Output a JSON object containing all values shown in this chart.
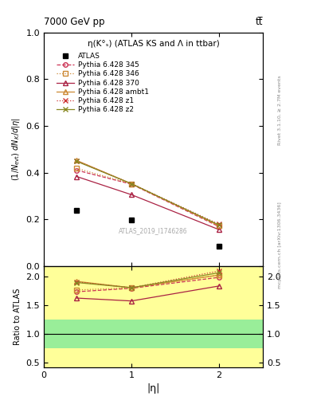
{
  "title_top": "7000 GeV pp",
  "title_right": "tt̅",
  "plot_title": "η(K°ₛ) (ATLAS KS and Λ in ttbar)",
  "watermark": "ATLAS_2019_I1746286",
  "xlabel": "|η|",
  "ylabel": "(1/N_{evt}) dN_{K}/d|η|",
  "ylabel_ratio": "Ratio to ATLAS",
  "rivet_label": "Rivet 3.1.10, ≥ 2.7M events",
  "mcplots_label": "mcplots.cern.ch [arXiv:1306.3436]",
  "atlas_data": {
    "x": [
      0.375,
      1.0,
      2.0
    ],
    "y": [
      0.237,
      0.196,
      0.085
    ],
    "label": "ATLAS"
  },
  "models": [
    {
      "label": "Pythia 6.428 345",
      "x": [
        0.375,
        1.0,
        2.0
      ],
      "y": [
        0.41,
        0.35,
        0.168
      ],
      "color": "#cc3355",
      "linestyle": "--",
      "marker": "o",
      "marker_face": "none"
    },
    {
      "label": "Pythia 6.428 346",
      "x": [
        0.375,
        1.0,
        2.0
      ],
      "y": [
        0.418,
        0.352,
        0.172
      ],
      "color": "#cc8833",
      "linestyle": ":",
      "marker": "s",
      "marker_face": "none"
    },
    {
      "label": "Pythia 6.428 370",
      "x": [
        0.375,
        1.0,
        2.0
      ],
      "y": [
        0.383,
        0.305,
        0.155
      ],
      "color": "#aa2244",
      "linestyle": "-",
      "marker": "^",
      "marker_face": "none"
    },
    {
      "label": "Pythia 6.428 ambt1",
      "x": [
        0.375,
        1.0,
        2.0
      ],
      "y": [
        0.452,
        0.352,
        0.172
      ],
      "color": "#cc8833",
      "linestyle": "-",
      "marker": "^",
      "marker_face": "none"
    },
    {
      "label": "Pythia 6.428 z1",
      "x": [
        0.375,
        1.0,
        2.0
      ],
      "y": [
        0.45,
        0.352,
        0.178
      ],
      "color": "#cc3333",
      "linestyle": ":",
      "marker": "x",
      "marker_face": "full"
    },
    {
      "label": "Pythia 6.428 z2",
      "x": [
        0.375,
        1.0,
        2.0
      ],
      "y": [
        0.448,
        0.352,
        0.175
      ],
      "color": "#888822",
      "linestyle": "-",
      "marker": "x",
      "marker_face": "full"
    }
  ],
  "ratio_models": [
    {
      "label": "Pythia 6.428 345",
      "x": [
        0.375,
        1.0,
        2.0
      ],
      "y": [
        1.73,
        1.79,
        1.98
      ],
      "color": "#cc3355",
      "linestyle": "--",
      "marker": "o",
      "marker_face": "none"
    },
    {
      "label": "Pythia 6.428 346",
      "x": [
        0.375,
        1.0,
        2.0
      ],
      "y": [
        1.76,
        1.8,
        2.02
      ],
      "color": "#cc8833",
      "linestyle": ":",
      "marker": "s",
      "marker_face": "none"
    },
    {
      "label": "Pythia 6.428 370",
      "x": [
        0.375,
        1.0,
        2.0
      ],
      "y": [
        1.62,
        1.57,
        1.83
      ],
      "color": "#aa2244",
      "linestyle": "-",
      "marker": "^",
      "marker_face": "none"
    },
    {
      "label": "Pythia 6.428 ambt1",
      "x": [
        0.375,
        1.0,
        2.0
      ],
      "y": [
        1.91,
        1.8,
        2.02
      ],
      "color": "#cc8833",
      "linestyle": "-",
      "marker": "^",
      "marker_face": "none"
    },
    {
      "label": "Pythia 6.428 z1",
      "x": [
        0.375,
        1.0,
        2.0
      ],
      "y": [
        1.9,
        1.8,
        2.09
      ],
      "color": "#cc3333",
      "linestyle": ":",
      "marker": "x",
      "marker_face": "full"
    },
    {
      "label": "Pythia 6.428 z2",
      "x": [
        0.375,
        1.0,
        2.0
      ],
      "y": [
        1.89,
        1.8,
        2.06
      ],
      "color": "#888822",
      "linestyle": "-",
      "marker": "x",
      "marker_face": "full"
    }
  ],
  "ylim_main": [
    0.0,
    1.0
  ],
  "ylim_ratio": [
    0.42,
    2.18
  ],
  "xlim": [
    0.0,
    2.5
  ],
  "yticks_main": [
    0.0,
    0.2,
    0.4,
    0.6,
    0.8,
    1.0
  ],
  "yticks_ratio": [
    0.5,
    1.0,
    1.5,
    2.0
  ],
  "xticks": [
    0,
    1,
    2
  ],
  "green_band": [
    0.75,
    1.25
  ],
  "yellow_band_lo": [
    0.42,
    0.75
  ],
  "yellow_band_hi": [
    1.25,
    2.18
  ],
  "bg_color": "#ffffff"
}
